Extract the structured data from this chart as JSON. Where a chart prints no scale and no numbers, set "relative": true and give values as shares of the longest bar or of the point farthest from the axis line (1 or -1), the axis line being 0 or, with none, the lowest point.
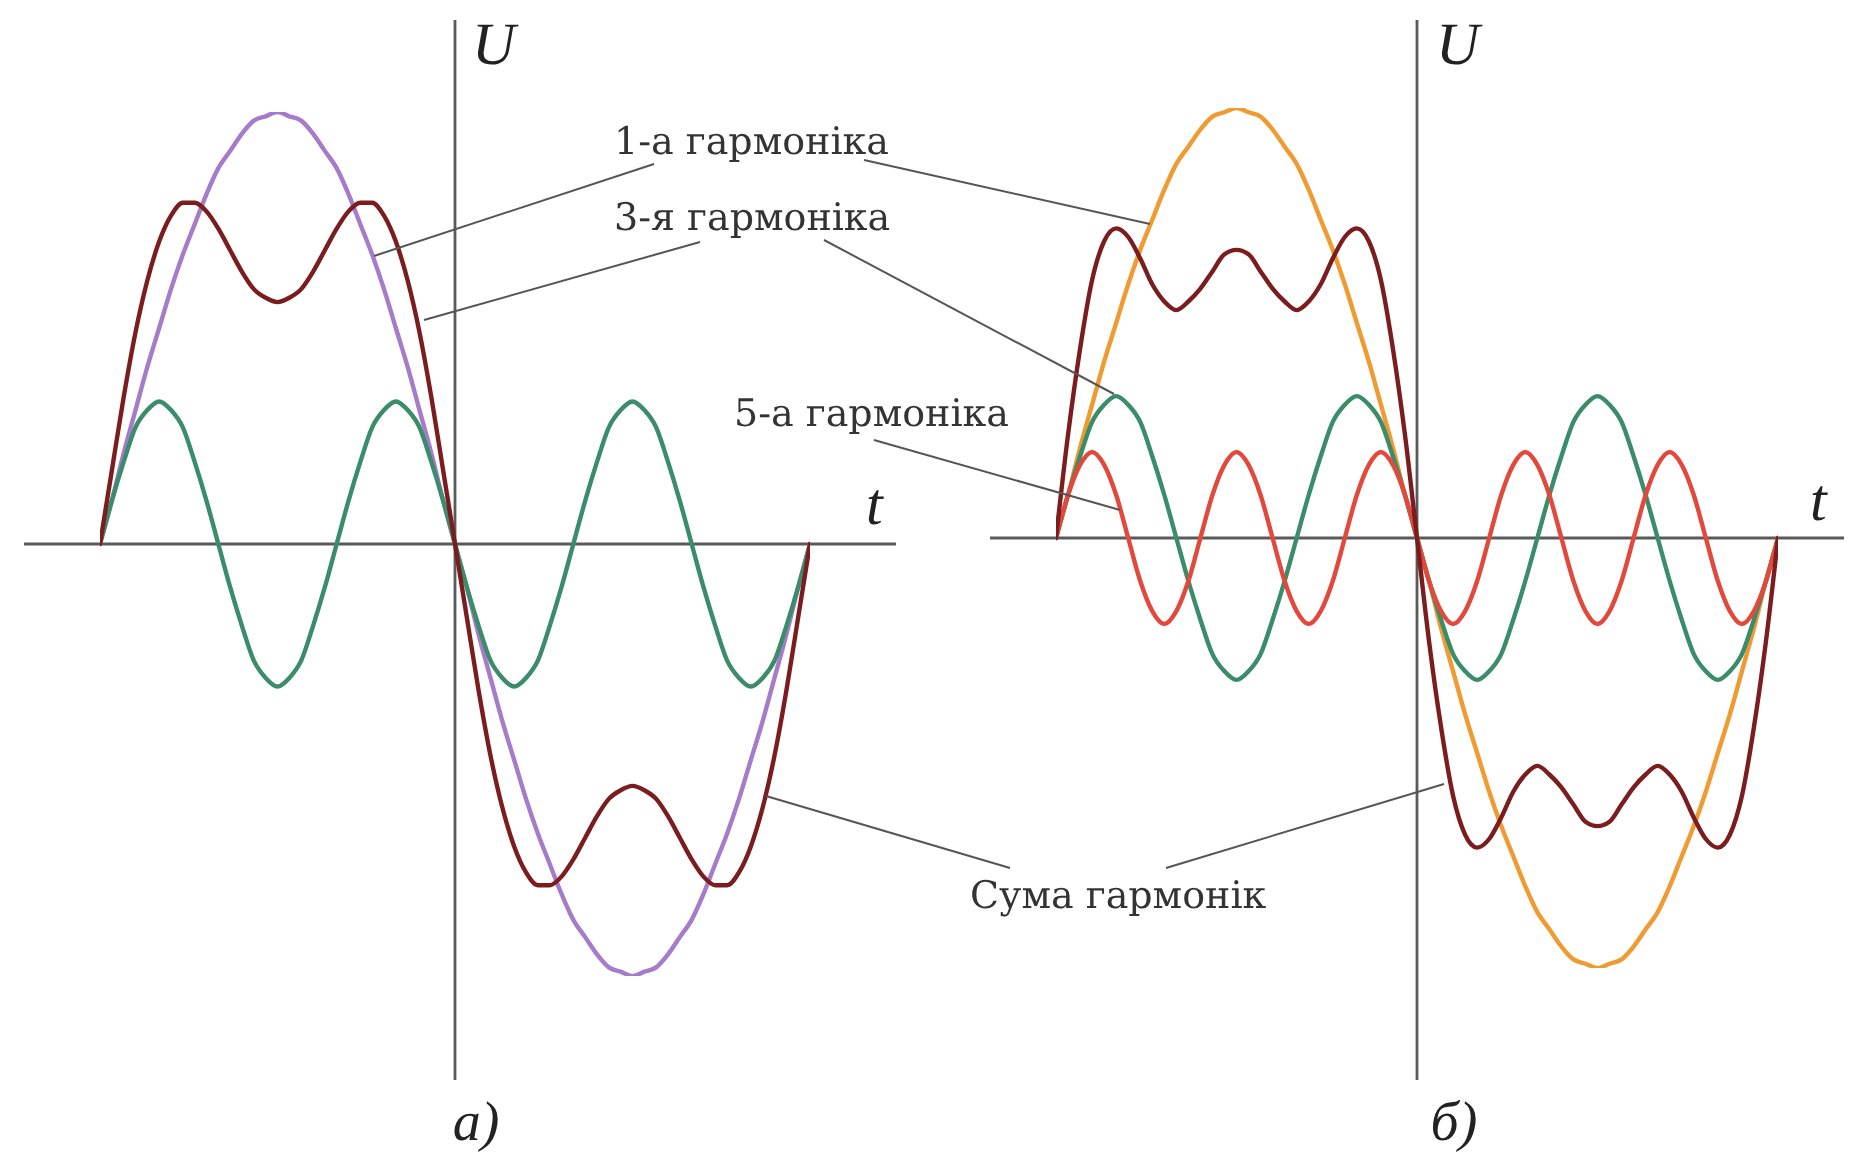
{
  "chart_data": [
    {
      "type": "line",
      "title": "а)",
      "xlabel": "t",
      "ylabel": "U",
      "relative": true,
      "categories": [
        null,
        null,
        null,
        null,
        null,
        null,
        null,
        null,
        null,
        null,
        null,
        null,
        null,
        null,
        null,
        null,
        null,
        null,
        null,
        null,
        null,
        null,
        null,
        null,
        null,
        null,
        null,
        null,
        null,
        null,
        null,
        null,
        null,
        null,
        null,
        null,
        null,
        null,
        null,
        null,
        null,
        null,
        null,
        null,
        null,
        null,
        null,
        null,
        null,
        null,
        null,
        null,
        null,
        null,
        null,
        null,
        null,
        null,
        null,
        null,
        null
      ],
      "series": [
        {
          "color": "#a67bc9",
          "values": [
            0,
            0.1,
            0.21,
            0.31,
            0.41,
            0.5,
            0.59,
            0.67,
            0.74,
            0.81,
            0.87,
            0.91,
            0.95,
            0.98,
            0.99,
            1,
            0.99,
            0.98,
            0.95,
            0.91,
            0.87,
            0.81,
            0.74,
            0.67,
            0.59,
            0.5,
            0.41,
            0.31,
            0.21,
            0.1,
            0,
            -0.1,
            -0.21,
            -0.31,
            -0.41,
            -0.5,
            -0.59,
            -0.67,
            -0.74,
            -0.81,
            -0.87,
            -0.91,
            -0.95,
            -0.98,
            -0.99,
            -1,
            -0.99,
            -0.98,
            -0.95,
            -0.91,
            -0.87,
            -0.81,
            -0.74,
            -0.67,
            -0.59,
            -0.5,
            -0.41,
            -0.31,
            -0.21,
            -0.1,
            0
          ]
        },
        {
          "color": "#3a8c6b",
          "values": [
            0,
            0.1,
            0.19,
            0.27,
            0.31,
            0.33,
            0.31,
            0.27,
            0.19,
            0.1,
            0,
            -0.1,
            -0.19,
            -0.27,
            -0.31,
            -0.33,
            -0.31,
            -0.27,
            -0.19,
            -0.1,
            0,
            0.1,
            0.19,
            0.27,
            0.31,
            0.33,
            0.31,
            0.27,
            0.19,
            0.1,
            0,
            -0.1,
            -0.19,
            -0.27,
            -0.31,
            -0.33,
            -0.31,
            -0.27,
            -0.19,
            -0.1,
            0,
            0.1,
            0.19,
            0.27,
            0.31,
            0.33,
            0.31,
            0.27,
            0.19,
            0.1,
            0,
            -0.1,
            -0.19,
            -0.27,
            -0.31,
            -0.33,
            -0.31,
            -0.27,
            -0.19,
            -0.1,
            0
          ]
        },
        {
          "name": "Сума гармонік",
          "color": "#7b1c1e",
          "values": [
            0,
            0.17,
            0.34,
            0.49,
            0.61,
            0.7,
            0.76,
            0.79,
            0.79,
            0.77,
            0.73,
            0.68,
            0.63,
            0.59,
            0.57,
            0.56,
            0.57,
            0.59,
            0.63,
            0.68,
            0.73,
            0.77,
            0.79,
            0.79,
            0.76,
            0.7,
            0.61,
            0.49,
            0.34,
            0.17,
            0,
            -0.17,
            -0.34,
            -0.49,
            -0.61,
            -0.7,
            -0.76,
            -0.79,
            -0.79,
            -0.77,
            -0.73,
            -0.68,
            -0.63,
            -0.59,
            -0.57,
            -0.56,
            -0.57,
            -0.59,
            -0.63,
            -0.68,
            -0.73,
            -0.77,
            -0.79,
            -0.79,
            -0.76,
            -0.7,
            -0.61,
            -0.49,
            -0.34,
            -0.17,
            0
          ]
        }
      ]
    },
    {
      "type": "line",
      "title": "б)",
      "xlabel": "t",
      "ylabel": "U",
      "relative": true,
      "categories": [
        null,
        null,
        null,
        null,
        null,
        null,
        null,
        null,
        null,
        null,
        null,
        null,
        null,
        null,
        null,
        null,
        null,
        null,
        null,
        null,
        null,
        null,
        null,
        null,
        null,
        null,
        null,
        null,
        null,
        null,
        null,
        null,
        null,
        null,
        null,
        null,
        null,
        null,
        null,
        null,
        null,
        null,
        null,
        null,
        null,
        null,
        null,
        null,
        null,
        null,
        null,
        null,
        null,
        null,
        null,
        null,
        null,
        null,
        null,
        null,
        null
      ],
      "series": [
        {
          "name": "1-а гармоніка",
          "color": "#f09a32",
          "values": [
            0,
            0.1,
            0.21,
            0.31,
            0.41,
            0.5,
            0.59,
            0.67,
            0.74,
            0.81,
            0.87,
            0.91,
            0.95,
            0.98,
            0.99,
            1,
            0.99,
            0.98,
            0.95,
            0.91,
            0.87,
            0.81,
            0.74,
            0.67,
            0.59,
            0.5,
            0.41,
            0.31,
            0.21,
            0.1,
            0,
            -0.1,
            -0.21,
            -0.31,
            -0.41,
            -0.5,
            -0.59,
            -0.67,
            -0.74,
            -0.81,
            -0.87,
            -0.91,
            -0.95,
            -0.98,
            -0.99,
            -1,
            -0.99,
            -0.98,
            -0.95,
            -0.91,
            -0.87,
            -0.81,
            -0.74,
            -0.67,
            -0.59,
            -0.5,
            -0.41,
            -0.31,
            -0.21,
            -0.1,
            0
          ]
        },
        {
          "name": "3-я гармоніка",
          "color": "#3a8c6b",
          "values": [
            0,
            0.1,
            0.19,
            0.27,
            0.31,
            0.33,
            0.31,
            0.27,
            0.19,
            0.1,
            0,
            -0.1,
            -0.19,
            -0.27,
            -0.31,
            -0.33,
            -0.31,
            -0.27,
            -0.19,
            -0.1,
            0,
            0.1,
            0.19,
            0.27,
            0.31,
            0.33,
            0.31,
            0.27,
            0.19,
            0.1,
            0,
            -0.1,
            -0.19,
            -0.27,
            -0.31,
            -0.33,
            -0.31,
            -0.27,
            -0.19,
            -0.1,
            0,
            0.1,
            0.19,
            0.27,
            0.31,
            0.33,
            0.31,
            0.27,
            0.19,
            0.1,
            0,
            -0.1,
            -0.19,
            -0.27,
            -0.31,
            -0.33,
            -0.31,
            -0.27,
            -0.19,
            -0.1,
            0
          ]
        },
        {
          "name": "5-а гармоніка",
          "color": "#e2483c",
          "values": [
            0,
            0.1,
            0.17,
            0.2,
            0.17,
            0.1,
            0,
            -0.1,
            -0.17,
            -0.2,
            -0.17,
            -0.1,
            0,
            0.1,
            0.17,
            0.2,
            0.17,
            0.1,
            0,
            -0.1,
            -0.17,
            -0.2,
            -0.17,
            -0.1,
            0,
            0.1,
            0.17,
            0.2,
            0.17,
            0.1,
            0,
            -0.1,
            -0.17,
            -0.2,
            -0.17,
            -0.1,
            0,
            0.1,
            0.17,
            0.2,
            0.17,
            0.1,
            0,
            -0.1,
            -0.17,
            -0.2,
            -0.17,
            -0.1,
            0,
            0.1,
            0.17,
            0.2,
            0.17,
            0.1,
            0,
            -0.1,
            -0.17,
            -0.2,
            -0.17,
            -0.1,
            0
          ]
        },
        {
          "color": "#7b1c1e",
          "values": [
            0,
            0.24,
            0.44,
            0.6,
            0.69,
            0.72,
            0.7,
            0.65,
            0.59,
            0.55,
            0.53,
            0.55,
            0.58,
            0.62,
            0.66,
            0.67,
            0.66,
            0.62,
            0.58,
            0.55,
            0.53,
            0.55,
            0.59,
            0.65,
            0.7,
            0.72,
            0.69,
            0.6,
            0.44,
            0.24,
            0,
            -0.24,
            -0.44,
            -0.6,
            -0.69,
            -0.72,
            -0.7,
            -0.65,
            -0.59,
            -0.55,
            -0.53,
            -0.55,
            -0.58,
            -0.62,
            -0.66,
            -0.67,
            -0.66,
            -0.62,
            -0.58,
            -0.55,
            -0.53,
            -0.55,
            -0.59,
            -0.65,
            -0.7,
            -0.72,
            -0.69,
            -0.6,
            -0.44,
            -0.24,
            0
          ]
        }
      ]
    }
  ]
}
